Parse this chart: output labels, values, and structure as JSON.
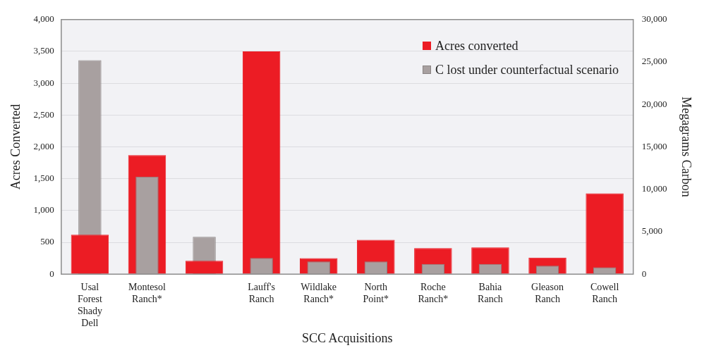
{
  "chart_data": {
    "type": "bar",
    "categories": [
      "Usal Forest Shady Dell",
      "Montesol Ranch*",
      null,
      "Lauff's Ranch",
      "Wildlake Ranch*",
      "North Point*",
      "Roche Ranch*",
      "Bahia Ranch",
      "Gleason Ranch",
      "Cowell Ranch"
    ],
    "xlabel": "SCC Acquisitions",
    "ylabel": "Acres Converted",
    "y2label": "Megagrams Carbon",
    "series": [
      {
        "name": "Acres converted",
        "color": "#ec1c24",
        "values": [
          620,
          1870,
          210,
          3500,
          250,
          540,
          410,
          420,
          260,
          1270
        ]
      },
      {
        "name": "C lost under counterfactual scenario",
        "color": "#a8a0a0",
        "axis": "y2",
        "values": [
          25200,
          11500,
          4400,
          1900,
          1500,
          1500,
          1200,
          1200,
          1000,
          800
        ]
      }
    ],
    "ylim": [
      0,
      4000
    ],
    "yticks": [
      {
        "value": 0,
        "label": "0"
      },
      {
        "value": 500,
        "label": "500"
      },
      {
        "value": 1000,
        "label": "1,000"
      },
      {
        "value": 1500,
        "label": "1,500"
      },
      {
        "value": 2000,
        "label": "2,000"
      },
      {
        "value": 2500,
        "label": "2,500"
      },
      {
        "value": 3000,
        "label": "3,000"
      },
      {
        "value": 3500,
        "label": "3,500"
      },
      {
        "value": 4000,
        "label": "4,000"
      }
    ],
    "y2lim": [
      0,
      30000
    ],
    "y2ticks": [
      {
        "value": 0,
        "label": "0"
      },
      {
        "value": 5000,
        "label": "5,000"
      },
      {
        "value": 10000,
        "label": "10,000"
      },
      {
        "value": 15000,
        "label": "15,000"
      },
      {
        "value": 20000,
        "label": "20,000"
      },
      {
        "value": 25000,
        "label": "25,000"
      },
      {
        "value": 30000,
        "label": "30,000"
      }
    ],
    "grid": "y",
    "legend": "top right"
  }
}
